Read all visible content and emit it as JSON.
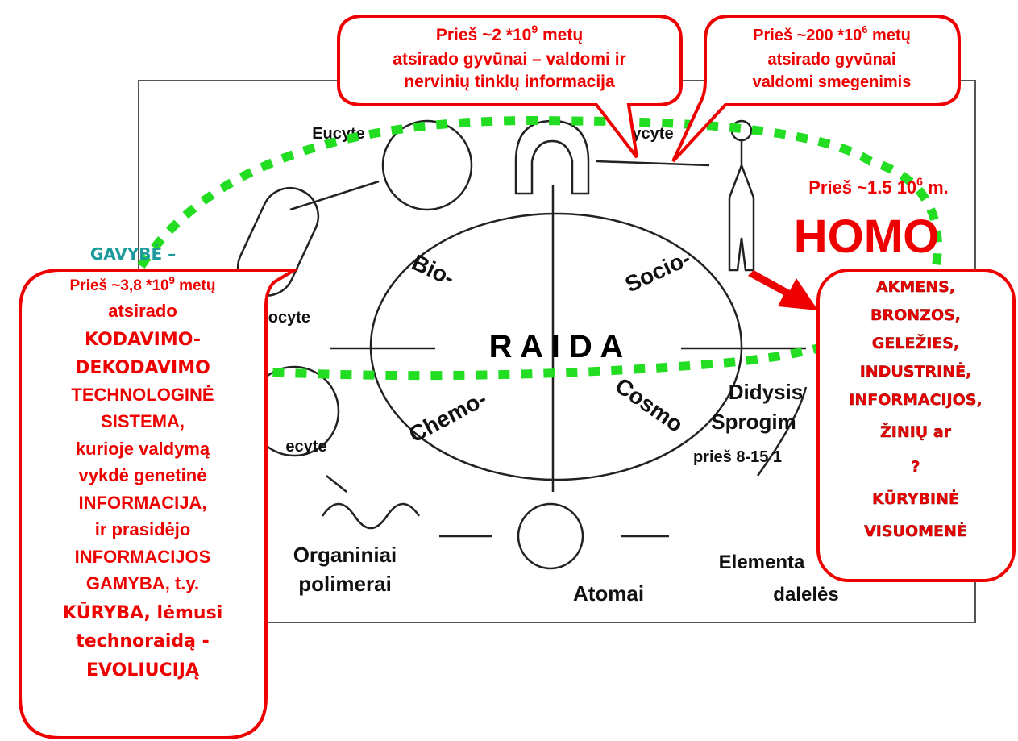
{
  "top_left_bubble": {
    "prefix": "Prieš ~2 *10",
    "exponent": "9",
    "suffix": " metų",
    "lines": [
      "atsirado gyvūnai – valdomi ir",
      "nervinių tinklų informacija"
    ]
  },
  "top_right_bubble": {
    "prefix": "Prieš ~200 *10",
    "exponent": "6",
    "suffix": " metų",
    "lines": [
      "atsirado gyvūnai",
      "valdomi smegenimis"
    ]
  },
  "homo": {
    "prefix": "Prieš ~1.5 10",
    "exponent": "6",
    "suffix": " m.",
    "title": "HOMO"
  },
  "gavybe": "GAVYBĖ –",
  "left_bubble": {
    "prefix": "Prieš ~3,8 *10",
    "exponent": "9",
    "suffix": " metų",
    "lines": [
      "atsirado",
      "KODAVIMO-",
      "DEKODAVIMO",
      "TECHNOLOGINĖ",
      "SISTEMA,",
      "kurioje valdymą",
      "vykdė genetinė",
      "INFORMACIJA,",
      "ir prasidėjo",
      "INFORMACIJOS",
      "GAMYBA,  t.y.",
      "KŪRYBA, lėmusi",
      "technoraidą -",
      "EVOLIUCIJĄ"
    ]
  },
  "right_bubble": {
    "lines": [
      "AKMENS,",
      "BRONZOS,",
      "GELEŽIES,",
      "INDUSTRINĖ,",
      "INFORMACIJOS,",
      "ŽINIŲ ar",
      "?",
      "KŪRYBINĖ",
      "VISUOMENĖ"
    ]
  },
  "diagram": {
    "labels": [
      "Eucyte",
      "ycyte",
      "rocyte",
      "ecyte",
      "Bio-",
      "Socio-",
      "R A I D A",
      "Chemo-",
      "Cosmo",
      "Didysis",
      "Sprogim",
      "prieš 8-15   1",
      "Organiniai",
      "polimerai",
      "Atomai",
      "Elementa",
      "dalelės"
    ]
  }
}
